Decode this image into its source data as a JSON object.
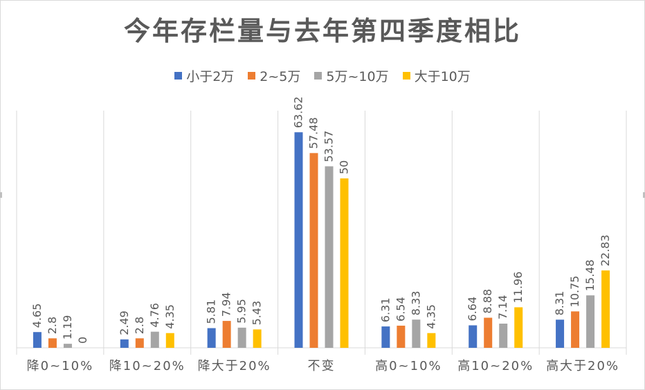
{
  "chart_data": {
    "type": "bar",
    "title": "今年存栏量与去年第四季度相比",
    "categories": [
      "降0~10%",
      "降10~20%",
      "降大于20%",
      "不变",
      "高0~10%",
      "高10~20%",
      "高大于20%"
    ],
    "series": [
      {
        "name": "小于2万",
        "color": "#4472C4",
        "values": [
          4.65,
          2.49,
          5.81,
          63.62,
          6.31,
          6.64,
          8.31
        ]
      },
      {
        "name": "2~5万",
        "color": "#ED7D31",
        "values": [
          2.8,
          2.8,
          7.94,
          57.48,
          6.54,
          8.88,
          10.75
        ]
      },
      {
        "name": "5万~10万",
        "color": "#A5A5A5",
        "values": [
          1.19,
          4.76,
          5.95,
          53.57,
          8.33,
          7.14,
          15.48
        ]
      },
      {
        "name": "大于10万",
        "color": "#FFC000",
        "values": [
          0,
          4.35,
          5.43,
          50,
          4.35,
          11.96,
          22.83
        ]
      }
    ],
    "ylim": [
      0,
      70
    ],
    "grid": "vertical category separators",
    "legend_position": "top"
  }
}
